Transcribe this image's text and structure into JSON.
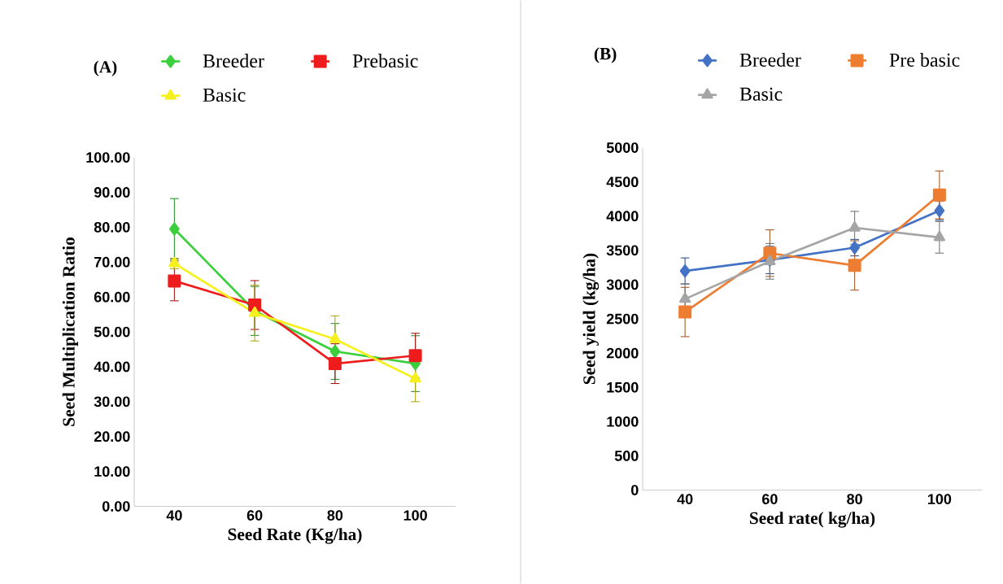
{
  "chart_data": [
    {
      "type": "line",
      "title": "(A)",
      "xlabel": "Seed Rate (Kg/ha)",
      "ylabel": "Seed Multiplication Ratio",
      "categories": [
        "40",
        "60",
        "80",
        "100"
      ],
      "ylim": [
        0,
        100
      ],
      "yticks": [
        {
          "value": 0,
          "label": "0.00"
        },
        {
          "value": 10,
          "label": "10.00"
        },
        {
          "value": 20,
          "label": "20.00"
        },
        {
          "value": 30,
          "label": "30.00"
        },
        {
          "value": 40,
          "label": "40.00"
        },
        {
          "value": 50,
          "label": "50.00"
        },
        {
          "value": 60,
          "label": "60.00"
        },
        {
          "value": 70,
          "label": "70.00"
        },
        {
          "value": 80,
          "label": "80.00"
        },
        {
          "value": 90,
          "label": "90.00"
        },
        {
          "value": 100,
          "label": "100.00"
        }
      ],
      "legend": "top",
      "series": [
        {
          "name": "Breeder",
          "color": "#3ccf3c",
          "marker": "diamond",
          "values": [
            79.5,
            56,
            44.4,
            40.9
          ],
          "errors": [
            8.7,
            7,
            8,
            8
          ]
        },
        {
          "name": "Prebasic",
          "color": "#ee1c1c",
          "marker": "square",
          "values": [
            64.6,
            57.7,
            40.9,
            43.2
          ],
          "errors": [
            5.7,
            7,
            5.7,
            6.4
          ]
        },
        {
          "name": "Basic",
          "color": "#f5f01e",
          "marker": "triangle",
          "values": [
            69.6,
            55.4,
            47.9,
            36.6
          ],
          "errors": [
            1.5,
            8,
            6.7,
            6.6
          ]
        }
      ]
    },
    {
      "type": "line",
      "title": "(B)",
      "xlabel": "Seed rate( kg/ha)",
      "ylabel": "Seed yield (kg/ha)",
      "categories": [
        "40",
        "60",
        "80",
        "100"
      ],
      "ylim": [
        0,
        5000
      ],
      "yticks": [
        0,
        500,
        1000,
        1500,
        2000,
        2500,
        3000,
        3500,
        4000,
        4500,
        5000
      ],
      "legend": "top",
      "series": [
        {
          "name": "Breeder",
          "color": "#4472c4",
          "marker": "diamond",
          "values": [
            3200,
            3360,
            3540,
            4080
          ],
          "errors": [
            190,
            200,
            120,
            140
          ]
        },
        {
          "name": "Pre basic",
          "color": "#ed7d31",
          "marker": "square",
          "values": [
            2600,
            3460,
            3280,
            4310
          ],
          "errors": [
            360,
            340,
            360,
            350
          ]
        },
        {
          "name": "Basic",
          "color": "#a5a5a5",
          "marker": "triangle",
          "values": [
            2790,
            3340,
            3830,
            3690
          ],
          "errors": [
            220,
            260,
            240,
            230
          ]
        }
      ]
    }
  ]
}
